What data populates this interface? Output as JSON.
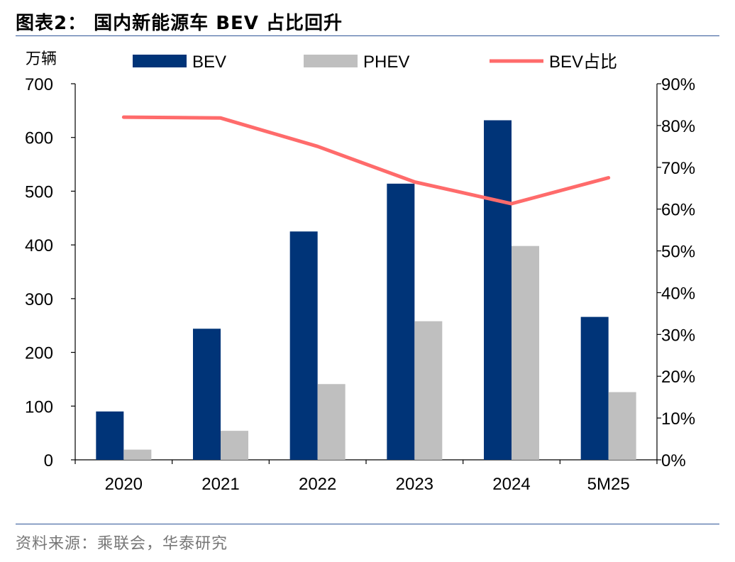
{
  "header": {
    "title": "图表2：  国内新能源车 BEV 占比回升"
  },
  "footer": {
    "source": "资料来源：乘联会，华泰研究"
  },
  "colors": {
    "bev": "#003478",
    "phev": "#bfbfbf",
    "share": "#ff6b6b",
    "rule": "#2f5597"
  },
  "chart_data": {
    "type": "bar",
    "categories": [
      "2020",
      "2021",
      "2022",
      "2023",
      "2024",
      "5M25"
    ],
    "unit_label": "万辆",
    "series": [
      {
        "name": "BEV",
        "type": "bar",
        "axis": "left",
        "values": [
          90,
          244,
          425,
          514,
          632,
          266
        ]
      },
      {
        "name": "PHEV",
        "type": "bar",
        "axis": "left",
        "values": [
          19,
          54,
          141,
          258,
          398,
          126
        ]
      },
      {
        "name": "BEV占比",
        "type": "line",
        "axis": "right",
        "values": [
          82,
          81.8,
          75,
          66.5,
          61.3,
          67.5
        ]
      }
    ],
    "y_left": {
      "min": 0,
      "max": 700,
      "ticks": [
        "0",
        "100",
        "200",
        "300",
        "400",
        "500",
        "600",
        "700"
      ]
    },
    "y_right": {
      "min": 0,
      "max": 90,
      "ticks": [
        "0%",
        "10%",
        "20%",
        "30%",
        "40%",
        "50%",
        "60%",
        "70%",
        "80%",
        "90%"
      ]
    },
    "grid": false,
    "legend": "top"
  }
}
